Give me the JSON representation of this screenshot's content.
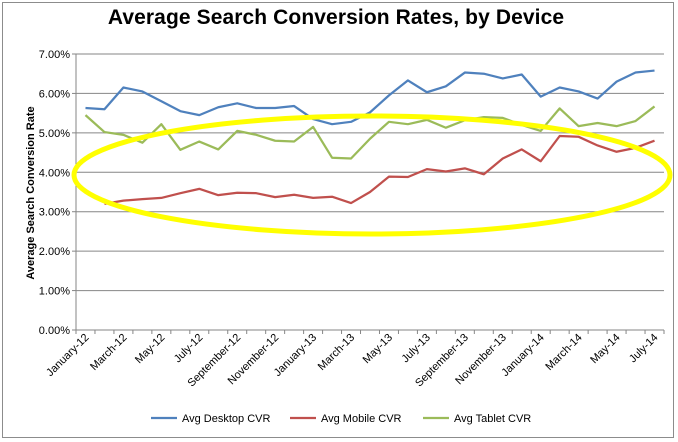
{
  "chart_data": {
    "type": "line",
    "title": "Average Search Conversion Rates, by Device",
    "xlabel": "",
    "ylabel": "Average Search Conversion Rate",
    "ylim": [
      0,
      7
    ],
    "yticks": [
      "0.00%",
      "1.00%",
      "2.00%",
      "3.00%",
      "4.00%",
      "5.00%",
      "6.00%",
      "7.00%"
    ],
    "grid": true,
    "legend_position": "bottom",
    "x": [
      "January-12",
      "February-12",
      "March-12",
      "April-12",
      "May-12",
      "June-12",
      "July-12",
      "August-12",
      "September-12",
      "October-12",
      "November-12",
      "December-12",
      "January-13",
      "February-13",
      "March-13",
      "April-13",
      "May-13",
      "June-13",
      "July-13",
      "August-13",
      "September-13",
      "October-13",
      "November-13",
      "December-13",
      "January-14",
      "February-14",
      "March-14",
      "April-14",
      "May-14",
      "June-14",
      "July-14"
    ],
    "x_tick_labels": [
      {
        "index": 0,
        "label": "January-12"
      },
      {
        "index": 2,
        "label": "March-12"
      },
      {
        "index": 4,
        "label": "May-12"
      },
      {
        "index": 6,
        "label": "July-12"
      },
      {
        "index": 8,
        "label": "September-12"
      },
      {
        "index": 10,
        "label": "November-12"
      },
      {
        "index": 12,
        "label": "January-13"
      },
      {
        "index": 14,
        "label": "March-13"
      },
      {
        "index": 16,
        "label": "May-13"
      },
      {
        "index": 18,
        "label": "July-13"
      },
      {
        "index": 20,
        "label": "September-13"
      },
      {
        "index": 22,
        "label": "November-13"
      },
      {
        "index": 24,
        "label": "January-14"
      },
      {
        "index": 26,
        "label": "March-14"
      },
      {
        "index": 28,
        "label": "May-14"
      },
      {
        "index": 30,
        "label": "July-14"
      }
    ],
    "series": [
      {
        "name": "Avg Desktop CVR",
        "color": "#4f81bd",
        "values": [
          5.63,
          5.6,
          6.15,
          6.05,
          5.8,
          5.55,
          5.45,
          5.65,
          5.75,
          5.63,
          5.63,
          5.68,
          5.35,
          5.22,
          5.28,
          5.52,
          5.95,
          6.33,
          6.03,
          6.18,
          6.53,
          6.5,
          6.38,
          6.48,
          5.92,
          6.15,
          6.05,
          5.87,
          6.3,
          6.53,
          6.58
        ]
      },
      {
        "name": "Avg Mobile CVR",
        "color": "#c0504d",
        "values": [
          null,
          3.2,
          3.28,
          3.32,
          3.35,
          3.47,
          3.58,
          3.42,
          3.48,
          3.47,
          3.37,
          3.43,
          3.35,
          3.38,
          3.22,
          3.5,
          3.89,
          3.88,
          4.08,
          4.02,
          4.1,
          3.95,
          4.35,
          4.58,
          4.28,
          4.92,
          4.9,
          4.68,
          4.52,
          4.62,
          4.8
        ]
      },
      {
        "name": "Avg Tablet CVR",
        "color": "#9bbb59",
        "values": [
          5.45,
          5.02,
          4.95,
          4.75,
          5.22,
          4.57,
          4.78,
          4.58,
          5.05,
          4.95,
          4.8,
          4.78,
          5.15,
          4.37,
          4.35,
          4.85,
          5.28,
          5.22,
          5.33,
          5.13,
          5.32,
          5.4,
          5.38,
          5.2,
          5.05,
          5.62,
          5.17,
          5.25,
          5.17,
          5.3,
          5.67
        ]
      }
    ],
    "annotations": [
      {
        "type": "ellipse",
        "color": "#ffff00",
        "description": "highlight around mobile/tablet convergence"
      }
    ]
  }
}
